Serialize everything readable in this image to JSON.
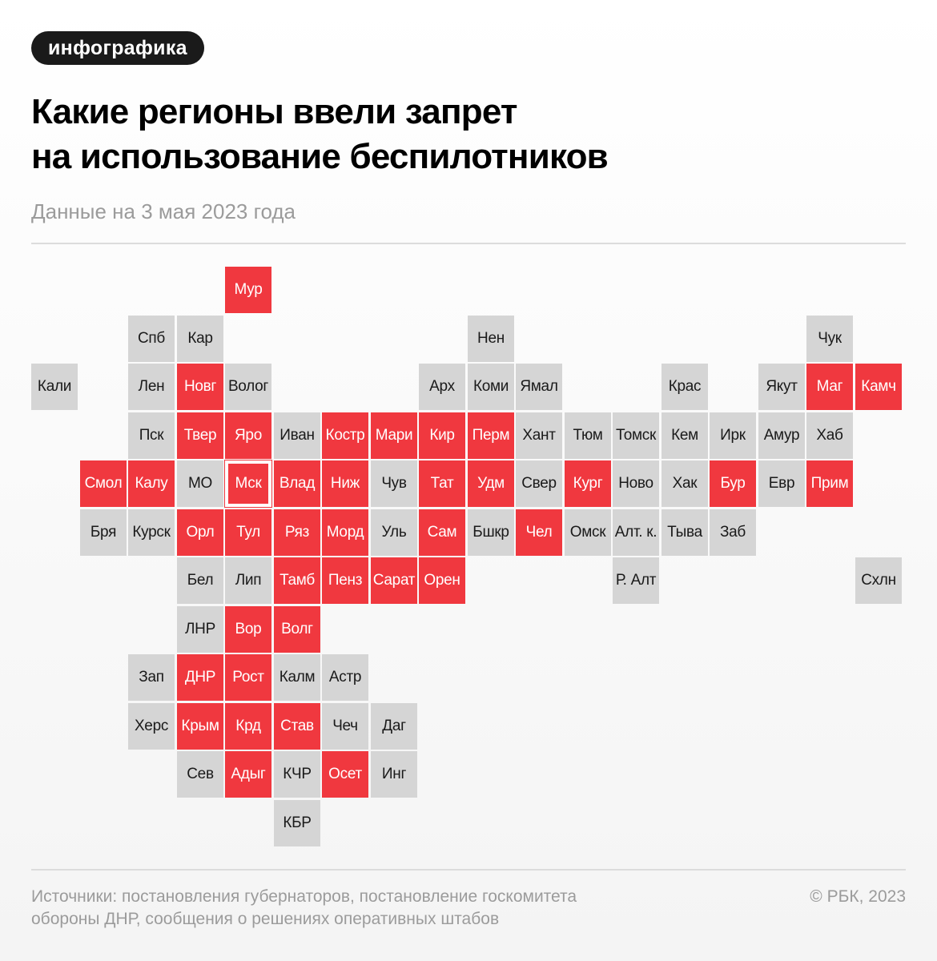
{
  "tag": "инфографика",
  "title_lines": [
    "Какие регионы ввели запрет",
    "на использование беспилотников"
  ],
  "subtitle": "Данные на 3 мая 2023 года",
  "colors": {
    "banned": "#f0383f",
    "not_banned": "#d5d5d5"
  },
  "regions": [
    {
      "label": "Мур",
      "row": 0,
      "col": 4,
      "banned": true
    },
    {
      "label": "Спб",
      "row": 1,
      "col": 2,
      "banned": false
    },
    {
      "label": "Кар",
      "row": 1,
      "col": 3,
      "banned": false
    },
    {
      "label": "Нен",
      "row": 1,
      "col": 9,
      "banned": false
    },
    {
      "label": "Чук",
      "row": 1,
      "col": 16,
      "banned": false
    },
    {
      "label": "Кали",
      "row": 2,
      "col": 0,
      "banned": false
    },
    {
      "label": "Лен",
      "row": 2,
      "col": 2,
      "banned": false
    },
    {
      "label": "Новг",
      "row": 2,
      "col": 3,
      "banned": true
    },
    {
      "label": "Волог",
      "row": 2,
      "col": 4,
      "banned": false
    },
    {
      "label": "Арх",
      "row": 2,
      "col": 8,
      "banned": false
    },
    {
      "label": "Коми",
      "row": 2,
      "col": 9,
      "banned": false
    },
    {
      "label": "Ямал",
      "row": 2,
      "col": 10,
      "banned": false
    },
    {
      "label": "Крас",
      "row": 2,
      "col": 13,
      "banned": false
    },
    {
      "label": "Якут",
      "row": 2,
      "col": 15,
      "banned": false
    },
    {
      "label": "Маг",
      "row": 2,
      "col": 16,
      "banned": true
    },
    {
      "label": "Камч",
      "row": 2,
      "col": 17,
      "banned": true
    },
    {
      "label": "Пск",
      "row": 3,
      "col": 2,
      "banned": false
    },
    {
      "label": "Твер",
      "row": 3,
      "col": 3,
      "banned": true
    },
    {
      "label": "Яро",
      "row": 3,
      "col": 4,
      "banned": true
    },
    {
      "label": "Иван",
      "row": 3,
      "col": 5,
      "banned": false
    },
    {
      "label": "Костр",
      "row": 3,
      "col": 6,
      "banned": true
    },
    {
      "label": "Мари",
      "row": 3,
      "col": 7,
      "banned": true
    },
    {
      "label": "Кир",
      "row": 3,
      "col": 8,
      "banned": true
    },
    {
      "label": "Перм",
      "row": 3,
      "col": 9,
      "banned": true
    },
    {
      "label": "Хант",
      "row": 3,
      "col": 10,
      "banned": false
    },
    {
      "label": "Тюм",
      "row": 3,
      "col": 11,
      "banned": false
    },
    {
      "label": "Томск",
      "row": 3,
      "col": 12,
      "banned": false
    },
    {
      "label": "Кем",
      "row": 3,
      "col": 13,
      "banned": false
    },
    {
      "label": "Ирк",
      "row": 3,
      "col": 14,
      "banned": false
    },
    {
      "label": "Амур",
      "row": 3,
      "col": 15,
      "banned": false
    },
    {
      "label": "Хаб",
      "row": 3,
      "col": 16,
      "banned": false
    },
    {
      "label": "Смол",
      "row": 4,
      "col": 1,
      "banned": true
    },
    {
      "label": "Калу",
      "row": 4,
      "col": 2,
      "banned": true
    },
    {
      "label": "МО",
      "row": 4,
      "col": 3,
      "banned": false
    },
    {
      "label": "Мск",
      "row": 4,
      "col": 4,
      "banned": true,
      "outlined": true
    },
    {
      "label": "Влад",
      "row": 4,
      "col": 5,
      "banned": true
    },
    {
      "label": "Ниж",
      "row": 4,
      "col": 6,
      "banned": true
    },
    {
      "label": "Чув",
      "row": 4,
      "col": 7,
      "banned": false
    },
    {
      "label": "Тат",
      "row": 4,
      "col": 8,
      "banned": true
    },
    {
      "label": "Удм",
      "row": 4,
      "col": 9,
      "banned": true
    },
    {
      "label": "Свер",
      "row": 4,
      "col": 10,
      "banned": false
    },
    {
      "label": "Кург",
      "row": 4,
      "col": 11,
      "banned": true
    },
    {
      "label": "Ново",
      "row": 4,
      "col": 12,
      "banned": false
    },
    {
      "label": "Хак",
      "row": 4,
      "col": 13,
      "banned": false
    },
    {
      "label": "Бур",
      "row": 4,
      "col": 14,
      "banned": true
    },
    {
      "label": "Евр",
      "row": 4,
      "col": 15,
      "banned": false
    },
    {
      "label": "Прим",
      "row": 4,
      "col": 16,
      "banned": true
    },
    {
      "label": "Бря",
      "row": 5,
      "col": 1,
      "banned": false
    },
    {
      "label": "Курск",
      "row": 5,
      "col": 2,
      "banned": false
    },
    {
      "label": "Орл",
      "row": 5,
      "col": 3,
      "banned": true
    },
    {
      "label": "Тул",
      "row": 5,
      "col": 4,
      "banned": true
    },
    {
      "label": "Ряз",
      "row": 5,
      "col": 5,
      "banned": true
    },
    {
      "label": "Морд",
      "row": 5,
      "col": 6,
      "banned": true
    },
    {
      "label": "Уль",
      "row": 5,
      "col": 7,
      "banned": false
    },
    {
      "label": "Сам",
      "row": 5,
      "col": 8,
      "banned": true
    },
    {
      "label": "Бшкр",
      "row": 5,
      "col": 9,
      "banned": false
    },
    {
      "label": "Чел",
      "row": 5,
      "col": 10,
      "banned": true
    },
    {
      "label": "Омск",
      "row": 5,
      "col": 11,
      "banned": false
    },
    {
      "label": "Алт. к.",
      "row": 5,
      "col": 12,
      "banned": false
    },
    {
      "label": "Тыва",
      "row": 5,
      "col": 13,
      "banned": false
    },
    {
      "label": "Заб",
      "row": 5,
      "col": 14,
      "banned": false
    },
    {
      "label": "Бел",
      "row": 6,
      "col": 3,
      "banned": false
    },
    {
      "label": "Лип",
      "row": 6,
      "col": 4,
      "banned": false
    },
    {
      "label": "Тамб",
      "row": 6,
      "col": 5,
      "banned": true
    },
    {
      "label": "Пенз",
      "row": 6,
      "col": 6,
      "banned": true
    },
    {
      "label": "Сарат",
      "row": 6,
      "col": 7,
      "banned": true
    },
    {
      "label": "Орен",
      "row": 6,
      "col": 8,
      "banned": true
    },
    {
      "label": "Р. Алт",
      "row": 6,
      "col": 12,
      "banned": false
    },
    {
      "label": "Схлн",
      "row": 6,
      "col": 17,
      "banned": false
    },
    {
      "label": "ЛНР",
      "row": 7,
      "col": 3,
      "banned": false
    },
    {
      "label": "Вор",
      "row": 7,
      "col": 4,
      "banned": true
    },
    {
      "label": "Волг",
      "row": 7,
      "col": 5,
      "banned": true
    },
    {
      "label": "Зап",
      "row": 8,
      "col": 2,
      "banned": false
    },
    {
      "label": "ДНР",
      "row": 8,
      "col": 3,
      "banned": true
    },
    {
      "label": "Рост",
      "row": 8,
      "col": 4,
      "banned": true
    },
    {
      "label": "Калм",
      "row": 8,
      "col": 5,
      "banned": false
    },
    {
      "label": "Астр",
      "row": 8,
      "col": 6,
      "banned": false
    },
    {
      "label": "Херс",
      "row": 9,
      "col": 2,
      "banned": false
    },
    {
      "label": "Крым",
      "row": 9,
      "col": 3,
      "banned": true
    },
    {
      "label": "Крд",
      "row": 9,
      "col": 4,
      "banned": true
    },
    {
      "label": "Став",
      "row": 9,
      "col": 5,
      "banned": true
    },
    {
      "label": "Чеч",
      "row": 9,
      "col": 6,
      "banned": false
    },
    {
      "label": "Даг",
      "row": 9,
      "col": 7,
      "banned": false
    },
    {
      "label": "Сев",
      "row": 10,
      "col": 3,
      "banned": false
    },
    {
      "label": "Адыг",
      "row": 10,
      "col": 4,
      "banned": true
    },
    {
      "label": "КЧР",
      "row": 10,
      "col": 5,
      "banned": false
    },
    {
      "label": "Осет",
      "row": 10,
      "col": 6,
      "banned": true
    },
    {
      "label": "Инг",
      "row": 10,
      "col": 7,
      "banned": false
    },
    {
      "label": "КБР",
      "row": 11,
      "col": 5,
      "banned": false
    }
  ],
  "source_lines": [
    "Источники: постановления губернаторов, постановление госкомитета",
    "обороны ДНР, сообщения о решениях оперативных штабов"
  ],
  "copyright": "© РБК, 2023"
}
